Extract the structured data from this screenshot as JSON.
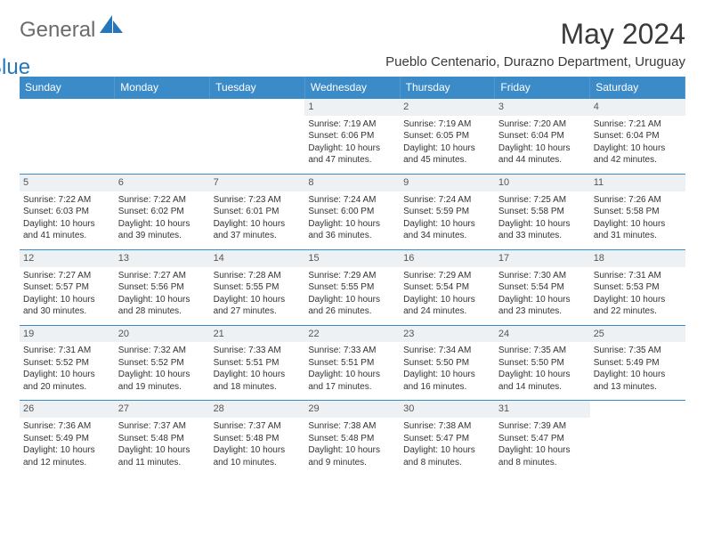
{
  "brand": {
    "text1": "General",
    "text2": "Blue"
  },
  "title": "May 2024",
  "location": "Pueblo Centenario, Durazno Department, Uruguay",
  "colors": {
    "header_bg": "#3b8bc8",
    "header_text": "#ffffff",
    "daystrip_bg": "#eef1f3",
    "border": "#3b8bc8",
    "brand_gray": "#6b6b6b",
    "brand_blue": "#2676bb"
  },
  "dayHeaders": [
    "Sunday",
    "Monday",
    "Tuesday",
    "Wednesday",
    "Thursday",
    "Friday",
    "Saturday"
  ],
  "weeks": [
    [
      {
        "n": "",
        "sr": "",
        "ss": "",
        "dl": ""
      },
      {
        "n": "",
        "sr": "",
        "ss": "",
        "dl": ""
      },
      {
        "n": "",
        "sr": "",
        "ss": "",
        "dl": ""
      },
      {
        "n": "1",
        "sr": "7:19 AM",
        "ss": "6:06 PM",
        "dl": "10 hours and 47 minutes."
      },
      {
        "n": "2",
        "sr": "7:19 AM",
        "ss": "6:05 PM",
        "dl": "10 hours and 45 minutes."
      },
      {
        "n": "3",
        "sr": "7:20 AM",
        "ss": "6:04 PM",
        "dl": "10 hours and 44 minutes."
      },
      {
        "n": "4",
        "sr": "7:21 AM",
        "ss": "6:04 PM",
        "dl": "10 hours and 42 minutes."
      }
    ],
    [
      {
        "n": "5",
        "sr": "7:22 AM",
        "ss": "6:03 PM",
        "dl": "10 hours and 41 minutes."
      },
      {
        "n": "6",
        "sr": "7:22 AM",
        "ss": "6:02 PM",
        "dl": "10 hours and 39 minutes."
      },
      {
        "n": "7",
        "sr": "7:23 AM",
        "ss": "6:01 PM",
        "dl": "10 hours and 37 minutes."
      },
      {
        "n": "8",
        "sr": "7:24 AM",
        "ss": "6:00 PM",
        "dl": "10 hours and 36 minutes."
      },
      {
        "n": "9",
        "sr": "7:24 AM",
        "ss": "5:59 PM",
        "dl": "10 hours and 34 minutes."
      },
      {
        "n": "10",
        "sr": "7:25 AM",
        "ss": "5:58 PM",
        "dl": "10 hours and 33 minutes."
      },
      {
        "n": "11",
        "sr": "7:26 AM",
        "ss": "5:58 PM",
        "dl": "10 hours and 31 minutes."
      }
    ],
    [
      {
        "n": "12",
        "sr": "7:27 AM",
        "ss": "5:57 PM",
        "dl": "10 hours and 30 minutes."
      },
      {
        "n": "13",
        "sr": "7:27 AM",
        "ss": "5:56 PM",
        "dl": "10 hours and 28 minutes."
      },
      {
        "n": "14",
        "sr": "7:28 AM",
        "ss": "5:55 PM",
        "dl": "10 hours and 27 minutes."
      },
      {
        "n": "15",
        "sr": "7:29 AM",
        "ss": "5:55 PM",
        "dl": "10 hours and 26 minutes."
      },
      {
        "n": "16",
        "sr": "7:29 AM",
        "ss": "5:54 PM",
        "dl": "10 hours and 24 minutes."
      },
      {
        "n": "17",
        "sr": "7:30 AM",
        "ss": "5:54 PM",
        "dl": "10 hours and 23 minutes."
      },
      {
        "n": "18",
        "sr": "7:31 AM",
        "ss": "5:53 PM",
        "dl": "10 hours and 22 minutes."
      }
    ],
    [
      {
        "n": "19",
        "sr": "7:31 AM",
        "ss": "5:52 PM",
        "dl": "10 hours and 20 minutes."
      },
      {
        "n": "20",
        "sr": "7:32 AM",
        "ss": "5:52 PM",
        "dl": "10 hours and 19 minutes."
      },
      {
        "n": "21",
        "sr": "7:33 AM",
        "ss": "5:51 PM",
        "dl": "10 hours and 18 minutes."
      },
      {
        "n": "22",
        "sr": "7:33 AM",
        "ss": "5:51 PM",
        "dl": "10 hours and 17 minutes."
      },
      {
        "n": "23",
        "sr": "7:34 AM",
        "ss": "5:50 PM",
        "dl": "10 hours and 16 minutes."
      },
      {
        "n": "24",
        "sr": "7:35 AM",
        "ss": "5:50 PM",
        "dl": "10 hours and 14 minutes."
      },
      {
        "n": "25",
        "sr": "7:35 AM",
        "ss": "5:49 PM",
        "dl": "10 hours and 13 minutes."
      }
    ],
    [
      {
        "n": "26",
        "sr": "7:36 AM",
        "ss": "5:49 PM",
        "dl": "10 hours and 12 minutes."
      },
      {
        "n": "27",
        "sr": "7:37 AM",
        "ss": "5:48 PM",
        "dl": "10 hours and 11 minutes."
      },
      {
        "n": "28",
        "sr": "7:37 AM",
        "ss": "5:48 PM",
        "dl": "10 hours and 10 minutes."
      },
      {
        "n": "29",
        "sr": "7:38 AM",
        "ss": "5:48 PM",
        "dl": "10 hours and 9 minutes."
      },
      {
        "n": "30",
        "sr": "7:38 AM",
        "ss": "5:47 PM",
        "dl": "10 hours and 8 minutes."
      },
      {
        "n": "31",
        "sr": "7:39 AM",
        "ss": "5:47 PM",
        "dl": "10 hours and 8 minutes."
      },
      {
        "n": "",
        "sr": "",
        "ss": "",
        "dl": ""
      }
    ]
  ],
  "labels": {
    "sunrise": "Sunrise:",
    "sunset": "Sunset:",
    "daylight": "Daylight:"
  }
}
